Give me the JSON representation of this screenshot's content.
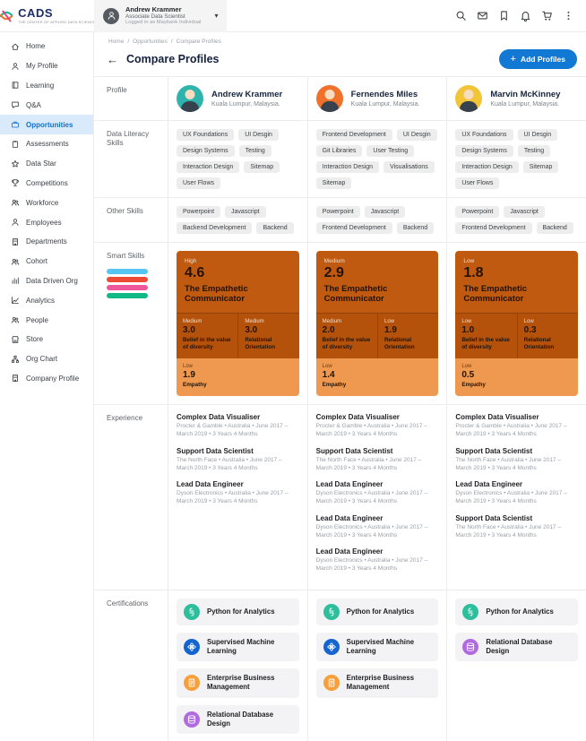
{
  "brand": {
    "name": "CADS",
    "tagline": "THE CENTER OF APPLIED DATA SCIENCE"
  },
  "topbar": {
    "user": {
      "name": "Andrew Krammer",
      "role": "Associate Data Scientist",
      "status": "Logged in as Maybank Individual"
    },
    "icons": [
      "search",
      "mail",
      "bookmark",
      "notifications",
      "cart",
      "more"
    ]
  },
  "sidebar": {
    "items": [
      {
        "label": "Home",
        "icon": "home"
      },
      {
        "label": "My Profile",
        "icon": "user"
      },
      {
        "label": "Learning",
        "icon": "book"
      },
      {
        "label": "Q&A",
        "icon": "chat"
      },
      {
        "label": "Opportunities",
        "icon": "briefcase",
        "active": true
      },
      {
        "label": "Assessments",
        "icon": "clipboard"
      },
      {
        "label": "Data Star",
        "icon": "star"
      },
      {
        "label": "Competitions",
        "icon": "trophy"
      },
      {
        "label": "Workforce",
        "icon": "users"
      },
      {
        "label": "Employees",
        "icon": "user"
      },
      {
        "label": "Departments",
        "icon": "building"
      },
      {
        "label": "Cohort",
        "icon": "users"
      },
      {
        "label": "Data Driven Org",
        "icon": "chart"
      },
      {
        "label": "Analytics",
        "icon": "analytics"
      },
      {
        "label": "People",
        "icon": "users"
      },
      {
        "label": "Store",
        "icon": "store"
      },
      {
        "label": "Org Chart",
        "icon": "org"
      },
      {
        "label": "Company Profile",
        "icon": "building"
      }
    ]
  },
  "page": {
    "breadcrumb": [
      "Home",
      "Opportunities",
      "Compare Profiles"
    ],
    "title": "Compare Profiles",
    "add_button_label": "Add Profiles"
  },
  "table": {
    "row_labels": [
      "Profile",
      "Data Literacy Skills",
      "Other Skills",
      "Smart Skills",
      "Experience",
      "Certifications"
    ],
    "smart_skills_legend_colors": [
      "#56c5f2",
      "#ee4b36",
      "#f0569c",
      "#12b886"
    ]
  },
  "profiles": [
    {
      "name": "Andrew Krammer",
      "location": "Kuala Lumpur, Malaysia.",
      "avatar_bg": "#2fb4ad",
      "data_literacy_skills": [
        "UX Foundations",
        "UI Desgin",
        "Design Systems",
        "Testing",
        "Interaction Design",
        "Sitemap",
        "User Flows"
      ],
      "other_skills": [
        "Powerpoint",
        "Javascript",
        "Backend Development",
        "Backend"
      ],
      "smart_skill": {
        "level": "High",
        "score": "4.6",
        "title": "The Empathetic Communicator",
        "breakdown": [
          {
            "level": "Medium",
            "score": "3.0",
            "label": "Belief in the value of diversity"
          },
          {
            "level": "Medium",
            "score": "3.0",
            "label": "Relational Orientation"
          },
          {
            "level": "Low",
            "score": "1.9",
            "label": "Empathy"
          }
        ]
      },
      "experience": [
        {
          "title": "Complex Data Visualiser",
          "detail": "Procter & Gamble • Australia • June 2017 – March 2019 • 3 Years 4 Months"
        },
        {
          "title": "Support Data Scientist",
          "detail": "The North Face • Australia • June 2017 – March 2019 • 3 Years 4 Months"
        },
        {
          "title": "Lead Data Engineer",
          "detail": "Dyson Electronics • Australia • June 2017 – March 2019 • 3 Years 4 Months"
        }
      ],
      "certifications": [
        {
          "label": "Python for Analytics",
          "icon": "python",
          "color": "#2dbf9c"
        },
        {
          "label": "Supervised Machine Learning",
          "icon": "machine-learning",
          "color": "#1565d1"
        },
        {
          "label": "Enterprise Business Management",
          "icon": "business",
          "color": "#f7a03b"
        },
        {
          "label": "Relational Database Design",
          "icon": "database",
          "color": "#b06be0"
        }
      ]
    },
    {
      "name": "Fernendes Miles",
      "location": "Kuala Lumpur, Malaysia.",
      "avatar_bg": "#f0712c",
      "data_literacy_skills": [
        "Frontend Development",
        "UI Desgin",
        "Git Libraries",
        "User Testing",
        "Interaction Design",
        "Visualisations",
        "Sitemap"
      ],
      "other_skills": [
        "Powerpoint",
        "Javascript",
        "Frontend Development",
        "Backend"
      ],
      "smart_skill": {
        "level": "Medium",
        "score": "2.9",
        "title": "The Empathetic Communicator",
        "breakdown": [
          {
            "level": "Medium",
            "score": "2.0",
            "label": "Belief in the value of diversity"
          },
          {
            "level": "Low",
            "score": "1.9",
            "label": "Relational Orientation"
          },
          {
            "level": "Low",
            "score": "1.4",
            "label": "Empathy"
          }
        ]
      },
      "experience": [
        {
          "title": "Complex Data Visualiser",
          "detail": "Procter & Gamble • Australia • June 2017 – March 2019 • 3 Years 4 Months"
        },
        {
          "title": "Support Data Scientist",
          "detail": "The North Face • Australia • June 2017 – March 2019 • 3 Years 4 Months"
        },
        {
          "title": "Lead Data Engineer",
          "detail": "Dyson Electronics • Australia • June 2017 – March 2019 • 3 Years 4 Months"
        },
        {
          "title": "Lead Data Engineer",
          "detail": "Dyson Electronics • Australia • June 2017 – March 2019 • 3 Years 4 Months"
        },
        {
          "title": "Lead Data Engineer",
          "detail": "Dyson Electronics • Australia • June 2017 – March 2019 • 3 Years 4 Months"
        }
      ],
      "certifications": [
        {
          "label": "Python for Analytics",
          "icon": "python",
          "color": "#2dbf9c"
        },
        {
          "label": "Supervised Machine Learning",
          "icon": "machine-learning",
          "color": "#1565d1"
        },
        {
          "label": "Enterprise Business Management",
          "icon": "business",
          "color": "#f7a03b"
        }
      ]
    },
    {
      "name": "Marvin McKinney",
      "location": "Kuala Lumpur, Malaysia.",
      "avatar_bg": "#f2c437",
      "data_literacy_skills": [
        "UX Foundations",
        "UI Desgin",
        "Design Systems",
        "Testing",
        "Interaction Design",
        "Sitemap",
        "User Flows"
      ],
      "other_skills": [
        "Powerpoint",
        "Javascript",
        "Frontend Development",
        "Backend"
      ],
      "smart_skill": {
        "level": "Low",
        "score": "1.8",
        "title": "The Empathetic Communicator",
        "breakdown": [
          {
            "level": "Low",
            "score": "1.0",
            "label": "Belief in the value of diversity"
          },
          {
            "level": "Low",
            "score": "0.3",
            "label": "Relational Orientation"
          },
          {
            "level": "Low",
            "score": "0.5",
            "label": "Empathy"
          }
        ]
      },
      "experience": [
        {
          "title": "Complex Data Visualiser",
          "detail": "Procter & Gamble • Australia • June 2017 – March 2019 • 3 Years 4 Months"
        },
        {
          "title": "Support Data Scientist",
          "detail": "The North Face • Australia • June 2017 – March 2019 • 3 Years 4 Months"
        },
        {
          "title": "Lead Data Engineer",
          "detail": "Dyson Electronics • Australia • June 2017 – March 2019 • 3 Years 4 Months"
        },
        {
          "title": "Support Data Scientist",
          "detail": "The North Face • Australia • June 2017 – March 2019 • 3 Years 4 Months"
        }
      ],
      "certifications": [
        {
          "label": "Python for Analytics",
          "icon": "python",
          "color": "#2dbf9c"
        },
        {
          "label": "Relational Database Design",
          "icon": "database",
          "color": "#b06be0"
        }
      ]
    }
  ]
}
